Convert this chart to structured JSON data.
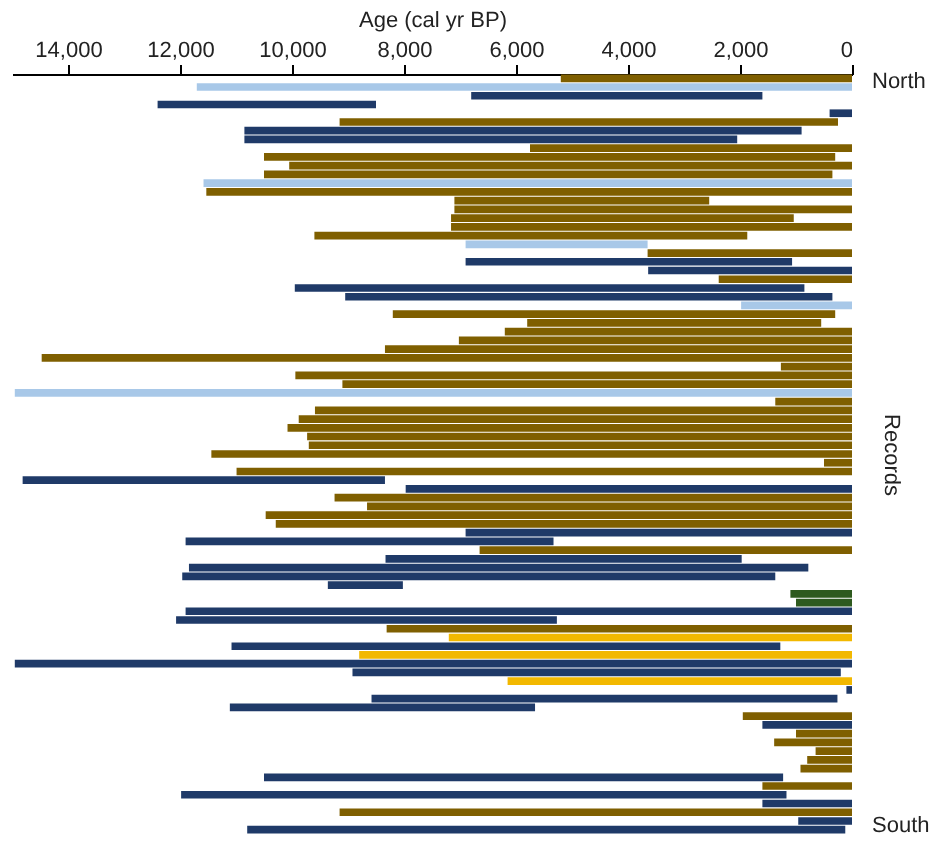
{
  "chart_data": {
    "type": "bar",
    "orientation": "horizontal",
    "xlabel": "Age (cal yr BP)",
    "ylabel": "Records",
    "annotations": [
      "North",
      "South"
    ],
    "xlim": [
      15000,
      0
    ],
    "xticks": [
      {
        "value": 14000,
        "label": "14,000"
      },
      {
        "value": 12000,
        "label": "12,000"
      },
      {
        "value": 10000,
        "label": "10,000"
      },
      {
        "value": 8000,
        "label": "8,000"
      },
      {
        "value": 6000,
        "label": "6,000"
      },
      {
        "value": 4000,
        "label": "4,000"
      },
      {
        "value": 2000,
        "label": "2,000"
      },
      {
        "value": 0,
        "label": "0"
      }
    ],
    "grid": false,
    "legend": false,
    "tick_labels": "x",
    "categories": [
      null,
      null,
      null,
      null,
      null,
      null,
      null,
      null,
      null,
      null,
      null,
      null,
      null,
      null,
      null,
      null,
      null,
      null,
      null,
      null,
      null,
      null,
      null,
      null,
      null,
      null,
      null,
      null,
      null,
      null,
      null,
      null,
      null,
      null,
      null,
      null,
      null,
      null,
      null,
      null,
      null,
      null,
      null,
      null,
      null,
      null,
      null,
      null,
      null,
      null,
      null,
      null,
      null,
      null,
      null,
      null,
      null,
      null,
      null,
      null,
      null,
      null,
      null,
      null,
      null,
      null,
      null,
      null,
      null,
      null,
      null,
      null,
      null,
      null,
      null,
      null,
      null,
      null,
      null,
      null,
      null,
      null,
      null,
      null,
      null,
      null,
      null
    ],
    "values": [
      5200,
      11700,
      5200,
      3900,
      400,
      8900,
      9950,
      8800,
      5750,
      10200,
      10050,
      10150,
      11580,
      11530,
      4550,
      7100,
      6120,
      7160,
      7730,
      3250,
      3650,
      5830,
      3640,
      2380,
      9100,
      8700,
      1980,
      7900,
      5250,
      6200,
      7020,
      8340,
      14470,
      1270,
      9940,
      9100,
      14950,
      1370,
      9590,
      9880,
      10080,
      9730,
      9700,
      11440,
      500,
      10990,
      6470,
      7970,
      9240,
      8660,
      10470,
      10290,
      6900,
      6570,
      6650,
      6360,
      11060,
      10590,
      1340,
      1100,
      1000,
      11900,
      6800,
      8310,
      7200,
      9800,
      8800,
      14950,
      8720,
      6150,
      100,
      8320,
      5450,
      1950,
      1600,
      1000,
      1390,
      650,
      800,
      920,
      9270,
      1600,
      10810,
      1600,
      9150,
      960,
      10680
    ],
    "base": [
      0,
      0,
      1600,
      8500,
      0,
      250,
      900,
      2050,
      0,
      300,
      0,
      350,
      0,
      0,
      2550,
      0,
      1040,
      0,
      1870,
      3650,
      0,
      1070,
      0,
      0,
      850,
      350,
      0,
      300,
      550,
      0,
      0,
      0,
      0,
      0,
      0,
      0,
      0,
      0,
      0,
      0,
      0,
      0,
      0,
      0,
      0,
      0,
      8340,
      0,
      0,
      0,
      0,
      0,
      0,
      5330,
      0,
      1970,
      780,
      1370,
      8020,
      0,
      0,
      0,
      5270,
      0,
      0,
      1280,
      0,
      0,
      200,
      0,
      0,
      260,
      5660,
      0,
      0,
      0,
      0,
      0,
      0,
      0,
      1230,
      0,
      1170,
      0,
      0,
      0,
      120
    ],
    "colors": [
      "#7f5f00",
      "#a8c8e8",
      "#1f3a68",
      "#1f3a68",
      "#1f3a68",
      "#7f5f00",
      "#1f3a68",
      "#1f3a68",
      "#7f5f00",
      "#7f5f00",
      "#7f5f00",
      "#7f5f00",
      "#a8c8e8",
      "#7f5f00",
      "#7f5f00",
      "#7f5f00",
      "#7f5f00",
      "#7f5f00",
      "#7f5f00",
      "#a8c8e8",
      "#7f5f00",
      "#1f3a68",
      "#1f3a68",
      "#7f5f00",
      "#1f3a68",
      "#1f3a68",
      "#a8c8e8",
      "#7f5f00",
      "#7f5f00",
      "#7f5f00",
      "#7f5f00",
      "#7f5f00",
      "#7f5f00",
      "#7f5f00",
      "#7f5f00",
      "#7f5f00",
      "#a8c8e8",
      "#7f5f00",
      "#7f5f00",
      "#7f5f00",
      "#7f5f00",
      "#7f5f00",
      "#7f5f00",
      "#7f5f00",
      "#7f5f00",
      "#7f5f00",
      "#1f3a68",
      "#1f3a68",
      "#7f5f00",
      "#7f5f00",
      "#7f5f00",
      "#7f5f00",
      "#1f3a68",
      "#1f3a68",
      "#7f5f00",
      "#1f3a68",
      "#1f3a68",
      "#1f3a68",
      "#1f3a68",
      "#2e5a1e",
      "#2e5a1e",
      "#1f3a68",
      "#1f3a68",
      "#7f5f00",
      "#f2b800",
      "#1f3a68",
      "#f2b800",
      "#1f3a68",
      "#1f3a68",
      "#f2b800",
      "#1f3a68",
      "#1f3a68",
      "#1f3a68",
      "#7f5f00",
      "#1f3a68",
      "#7f5f00",
      "#7f5f00",
      "#7f5f00",
      "#7f5f00",
      "#7f5f00",
      "#1f3a68",
      "#7f5f00",
      "#1f3a68",
      "#1f3a68",
      "#7f5f00",
      "#1f3a68",
      "#1f3a68"
    ]
  }
}
